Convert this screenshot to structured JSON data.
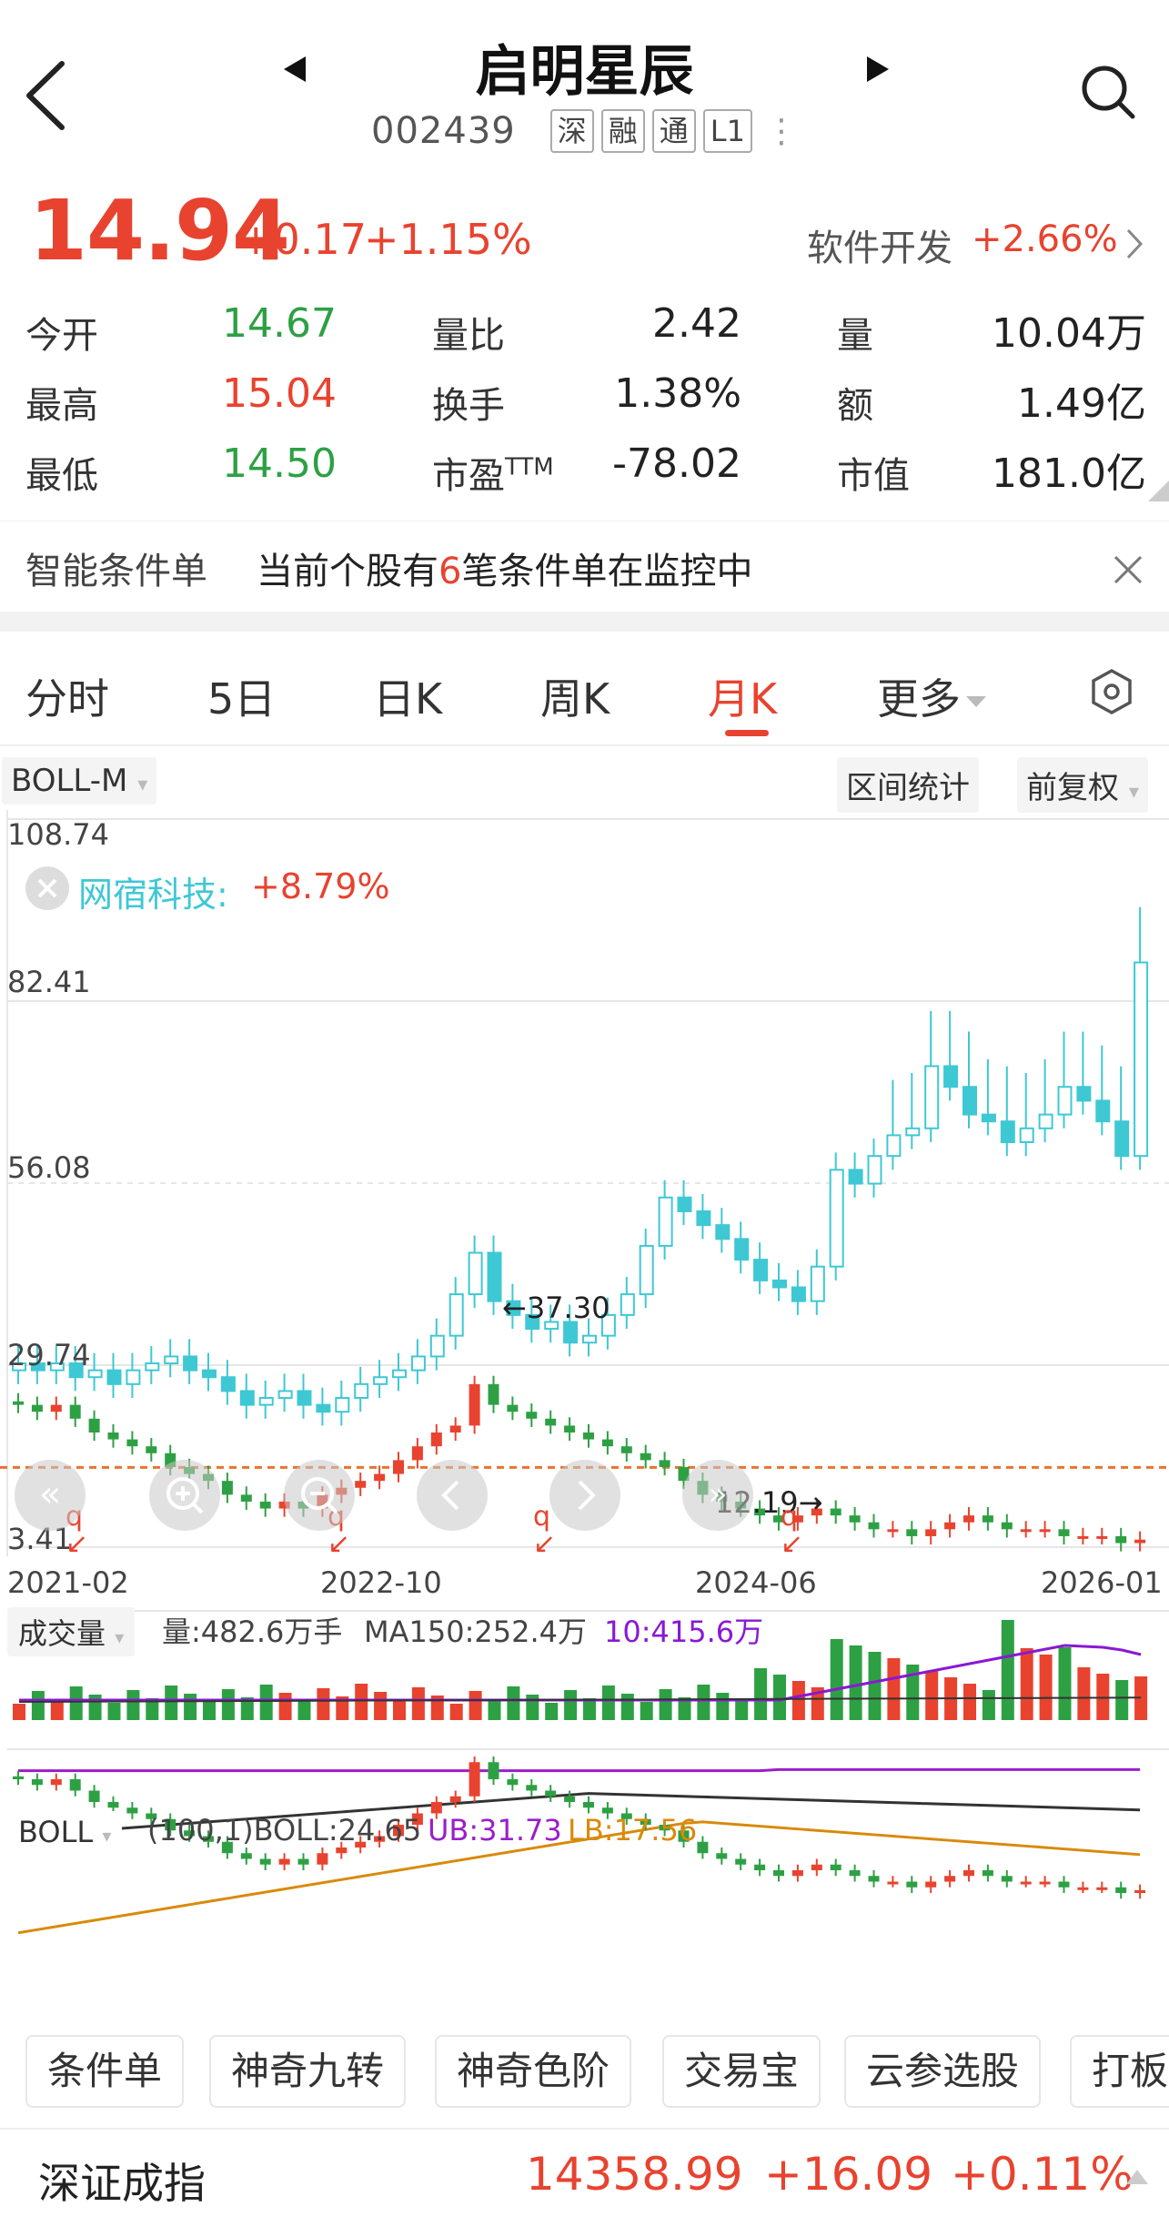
{
  "header": {
    "name": "启明星辰",
    "code": "002439",
    "tags": [
      "深",
      "融",
      "通",
      "L1"
    ],
    "more": "⋮"
  },
  "quote": {
    "price": "14.94",
    "change": "+0.17",
    "change_pct": "+1.15%",
    "sector": "软件开发",
    "sector_pct": "+2.66%"
  },
  "stats": [
    [
      {
        "label": "今开",
        "value": "14.67",
        "color": "green"
      },
      {
        "label": "量比",
        "value": "2.42",
        "color": "black"
      },
      {
        "label": "量",
        "value": "10.04万",
        "color": "black"
      }
    ],
    [
      {
        "label": "最高",
        "value": "15.04",
        "color": "red"
      },
      {
        "label": "换手",
        "value": "1.38%",
        "color": "black"
      },
      {
        "label": "额",
        "value": "1.49亿",
        "color": "black"
      }
    ],
    [
      {
        "label": "最低",
        "value": "14.50",
        "color": "green"
      },
      {
        "label": "市盈",
        "value": "-78.02",
        "color": "black",
        "sup": "TTM"
      },
      {
        "label": "市值",
        "value": "181.0亿",
        "color": "black"
      }
    ]
  ],
  "condition": {
    "title": "智能条件单",
    "text_before": "当前个股有",
    "count": "6",
    "text_after": "笔条件单在监控中"
  },
  "tabs": [
    {
      "label": "分时"
    },
    {
      "label": "5日"
    },
    {
      "label": "日K"
    },
    {
      "label": "周K"
    },
    {
      "label": "月K",
      "active": true
    },
    {
      "label": "更多"
    }
  ],
  "indicators": {
    "main": "BOLL-M",
    "range_stats": "区间统计",
    "adjust": "前复权",
    "volume_sel": "成交量",
    "volume_text": "量:482.6万手",
    "ma_text": "MA150:252.4万",
    "ma10_text": "10:415.6万",
    "boll_sel": "BOLL",
    "boll_params": "(100,1)BOLL:24.65",
    "ub_text": "UB:31.73",
    "lb_text": "LB:17.56"
  },
  "overlay": {
    "name": "网宿科技:",
    "pct": "+8.79%"
  },
  "chart_data": {
    "type": "candlestick",
    "y_ticks": [
      "108.74",
      "82.41",
      "56.08",
      "29.74",
      "3.41"
    ],
    "x_ticks": [
      "2021-02",
      "2022-10",
      "2024-06",
      "2026-01"
    ],
    "annotations": [
      "37.30",
      "12.19"
    ],
    "markers": [
      "q",
      "q",
      "q",
      "q"
    ],
    "current_line": 14.94,
    "colors": {
      "up": "#e8432f",
      "down": "#2ea044",
      "overlay": "#3ec8d4",
      "boll_mid": "#333333",
      "boll_up": "#9b1ec9",
      "boll_low": "#d98a0a",
      "ma": "#8a18d4"
    }
  },
  "bottom_chips": [
    "条件单",
    "神奇九转",
    "神奇色阶",
    "交易宝",
    "云参选股",
    "打板"
  ],
  "index": {
    "name": "深证成指",
    "value": "14358.99",
    "change": "+16.09",
    "pct": "+0.11%"
  }
}
